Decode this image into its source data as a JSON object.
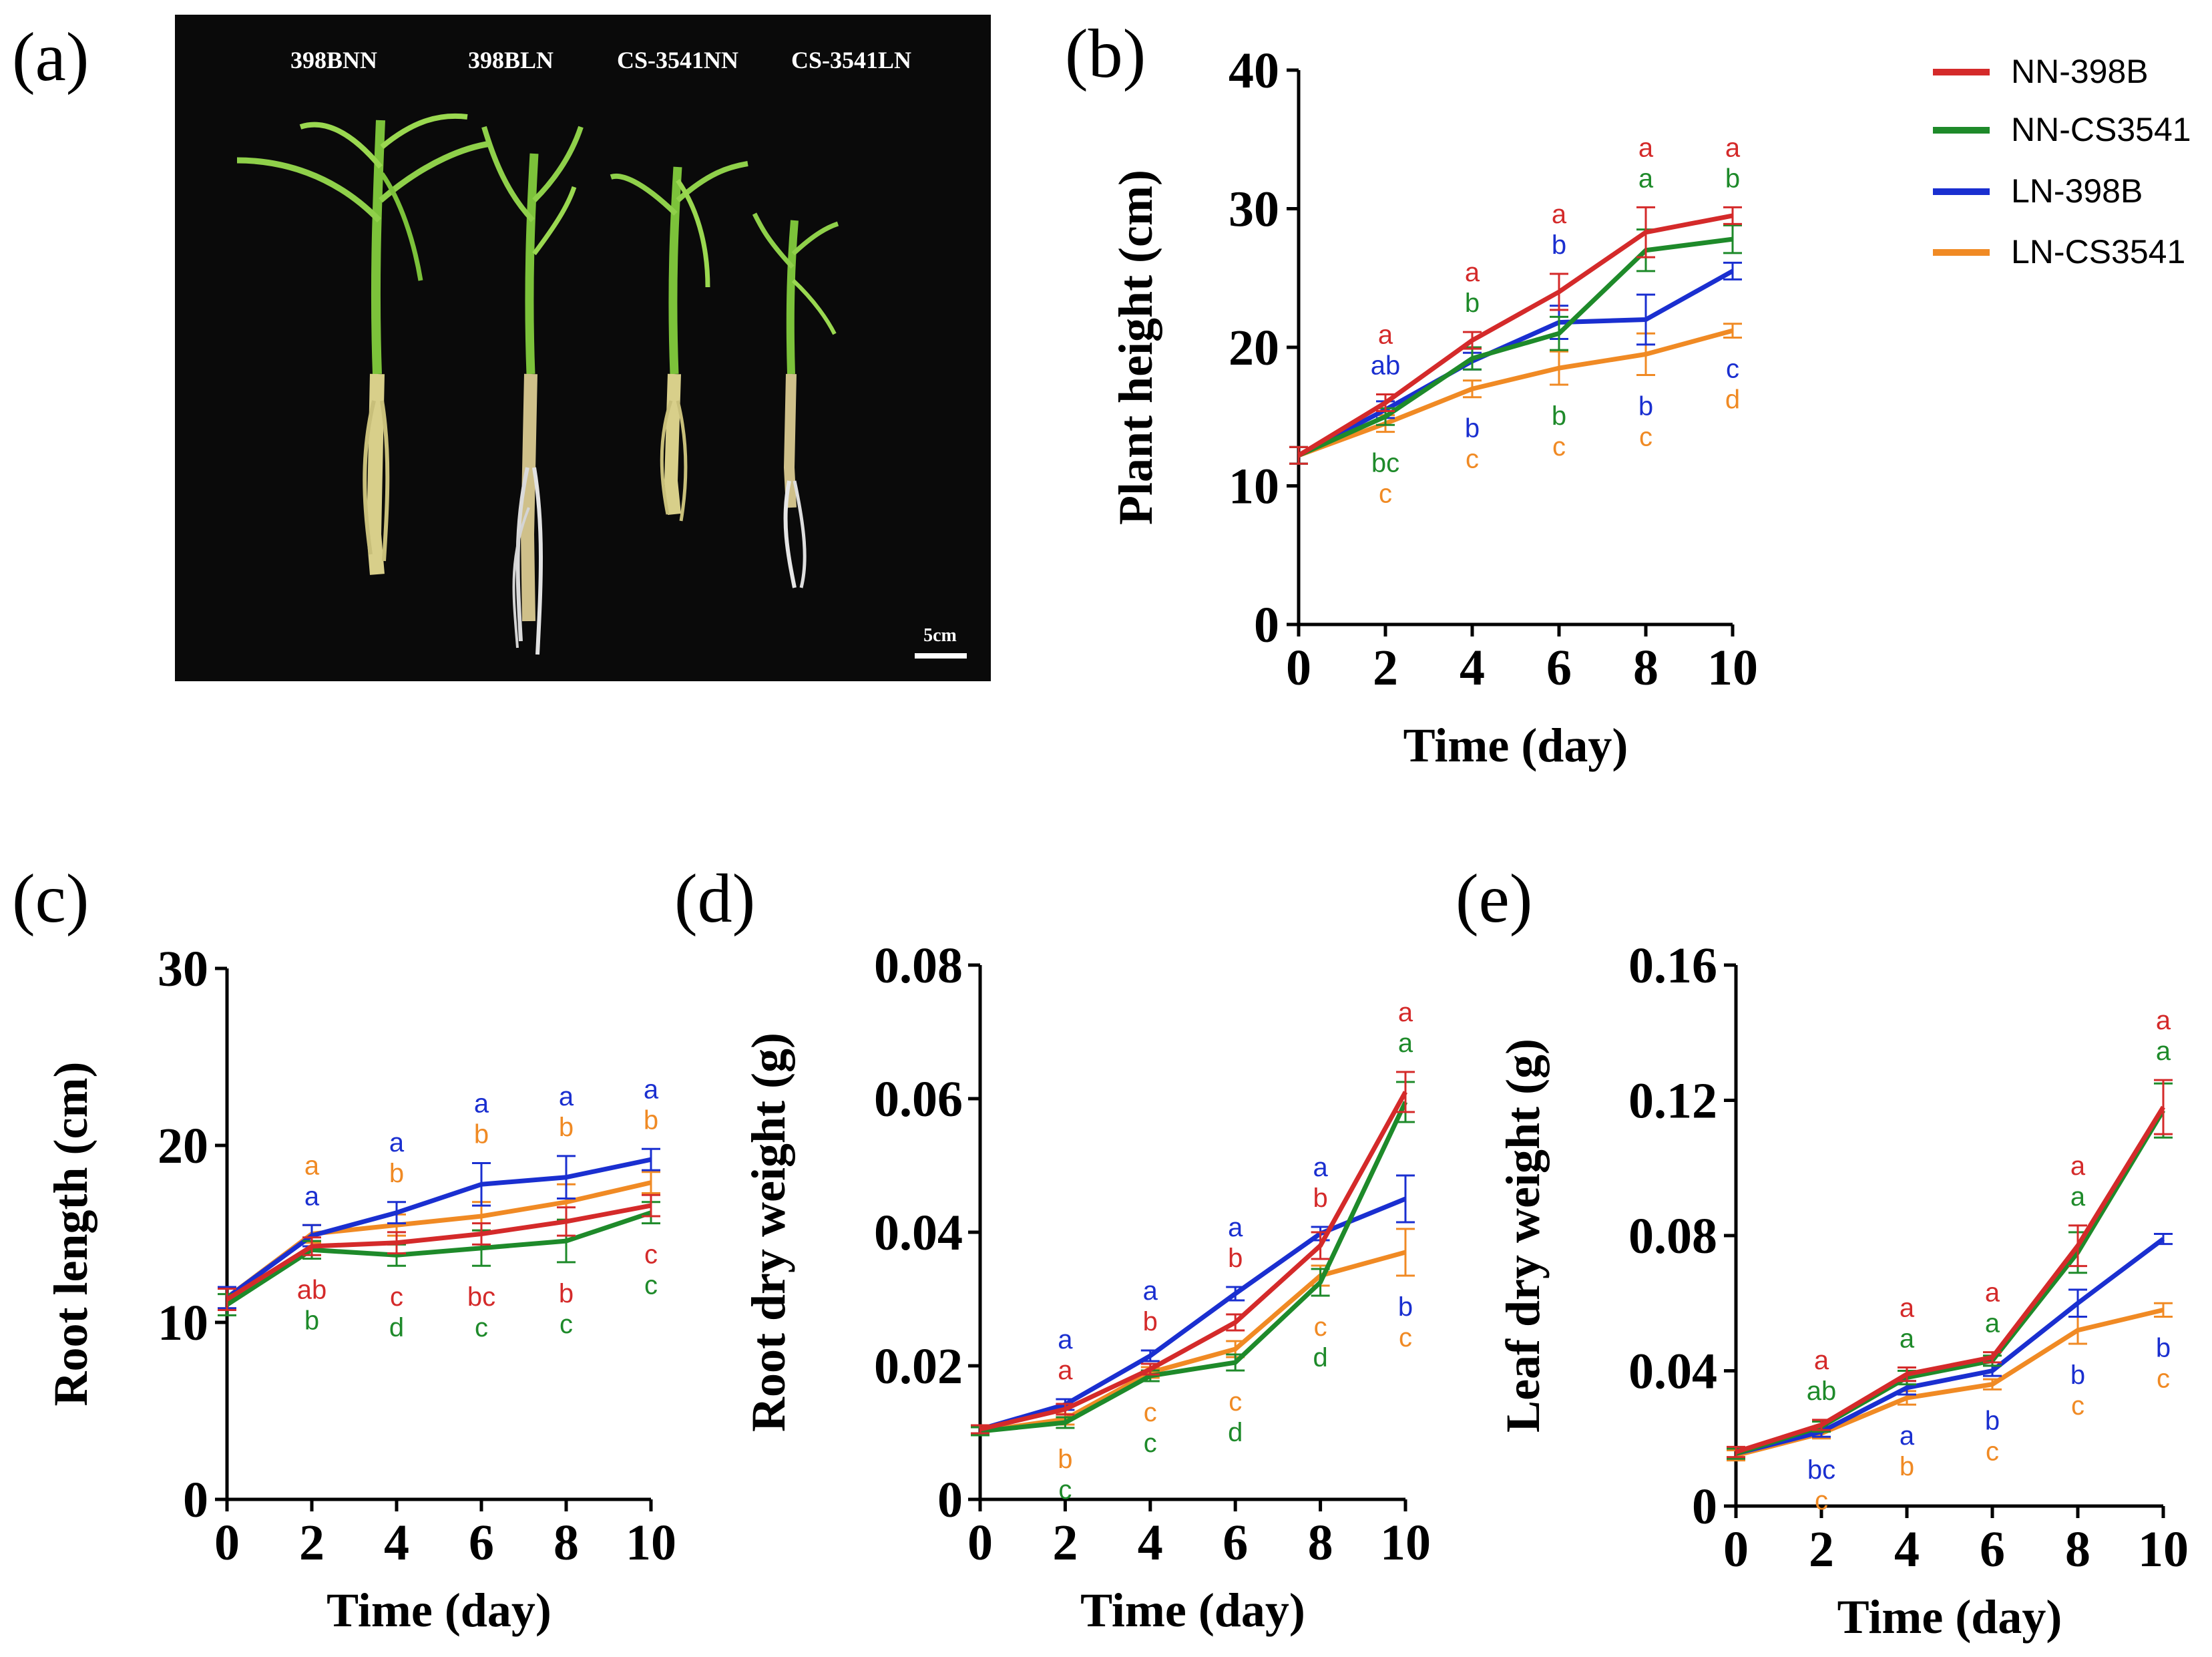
{
  "colors": {
    "NN-398B": "#d42a2a",
    "NN-CS3541": "#1e8a2a",
    "LN-398B": "#1a2fd0",
    "LN-CS3541": "#f08a24"
  },
  "legend": [
    "NN-398B",
    "NN-CS3541",
    "LN-398B",
    "LN-CS3541"
  ],
  "photo": {
    "label": "(a)",
    "samples": [
      "398BNN",
      "398BLN",
      "CS-3541NN",
      "CS-3541LN"
    ],
    "scale_bar": "5cm"
  },
  "chart_data": [
    {
      "id": "b",
      "label": "(b)",
      "type": "line",
      "xlabel": "Time (day)",
      "ylabel": "Plant height (cm)",
      "x": [
        0,
        2,
        4,
        6,
        8,
        10
      ],
      "xticks": [
        "0",
        "2",
        "4",
        "6",
        "8",
        "10"
      ],
      "ylim": [
        0,
        40
      ],
      "yticks": [
        0,
        10,
        20,
        30,
        40
      ],
      "ytick_labels": [
        "0",
        "10",
        "20",
        "30",
        "40"
      ],
      "series": [
        {
          "name": "NN-398B",
          "values": [
            12.2,
            16.0,
            20.5,
            24.0,
            28.3,
            29.5
          ],
          "errors": [
            0.6,
            0.6,
            0.6,
            1.3,
            1.8,
            0.6
          ],
          "sig": [
            "",
            "a",
            "a",
            "a",
            "a",
            "a"
          ]
        },
        {
          "name": "NN-CS3541",
          "values": [
            12.2,
            15.0,
            19.2,
            21.0,
            27.0,
            27.8
          ],
          "errors": [
            0.6,
            0.6,
            0.8,
            1.2,
            1.5,
            1.0
          ],
          "sig": [
            "",
            "bc",
            "b",
            "b",
            "a",
            "b"
          ]
        },
        {
          "name": "LN-398B",
          "values": [
            12.2,
            15.5,
            19.0,
            21.8,
            22.0,
            25.5
          ],
          "errors": [
            0.6,
            0.6,
            0.6,
            1.2,
            1.8,
            0.6
          ],
          "sig": [
            "",
            "ab",
            "b",
            "b",
            "b",
            "c"
          ]
        },
        {
          "name": "LN-CS3541",
          "values": [
            12.2,
            14.5,
            17.0,
            18.5,
            19.5,
            21.2
          ],
          "errors": [
            0.6,
            0.6,
            0.6,
            1.2,
            1.5,
            0.5
          ],
          "sig": [
            "",
            "c",
            "c",
            "c",
            "c",
            "d"
          ]
        }
      ]
    },
    {
      "id": "c",
      "label": "(c)",
      "type": "line",
      "xlabel": "Time (day)",
      "ylabel": "Root length (cm)",
      "x": [
        0,
        2,
        4,
        6,
        8,
        10
      ],
      "xticks": [
        "0",
        "2",
        "4",
        "6",
        "8",
        "10"
      ],
      "ylim": [
        0,
        30
      ],
      "yticks": [
        0,
        10,
        20,
        30
      ],
      "ytick_labels": [
        "0",
        "10",
        "20",
        "30"
      ],
      "series": [
        {
          "name": "NN-398B",
          "values": [
            11.3,
            14.3,
            14.5,
            15.0,
            15.7,
            16.6
          ],
          "errors": [
            0.6,
            0.5,
            0.6,
            0.6,
            0.8,
            0.6
          ],
          "sig": [
            "",
            "ab",
            "c",
            "bc",
            "b",
            "c"
          ]
        },
        {
          "name": "NN-CS3541",
          "values": [
            11.0,
            14.1,
            13.8,
            14.2,
            14.6,
            16.2
          ],
          "errors": [
            0.6,
            0.5,
            0.6,
            1.0,
            1.2,
            0.6
          ],
          "sig": [
            "",
            "b",
            "d",
            "c",
            "c",
            "c"
          ]
        },
        {
          "name": "LN-398B",
          "values": [
            11.4,
            14.9,
            16.2,
            17.8,
            18.2,
            19.2
          ],
          "errors": [
            0.6,
            0.6,
            0.6,
            1.2,
            1.2,
            0.6
          ],
          "sig": [
            "",
            "a",
            "a",
            "a",
            "a",
            "a"
          ]
        },
        {
          "name": "LN-CS3541",
          "values": [
            11.4,
            15.0,
            15.5,
            16.0,
            16.8,
            17.9
          ],
          "errors": [
            0.6,
            0.5,
            0.6,
            0.8,
            1.0,
            0.6
          ],
          "sig": [
            "",
            "a",
            "b",
            "b",
            "b",
            "b"
          ]
        }
      ]
    },
    {
      "id": "d",
      "label": "(d)",
      "type": "line",
      "xlabel": "Time (day)",
      "ylabel": "Root dry weight (g)",
      "x": [
        0,
        2,
        4,
        6,
        8,
        10
      ],
      "xticks": [
        "0",
        "2",
        "4",
        "6",
        "8",
        "10"
      ],
      "ylim": [
        0,
        0.08
      ],
      "yticks": [
        0,
        0.02,
        0.04,
        0.06,
        0.08
      ],
      "ytick_labels": [
        "0",
        "0.02",
        "0.04",
        "0.06",
        "0.08"
      ],
      "series": [
        {
          "name": "NN-398B",
          "values": [
            0.0105,
            0.0135,
            0.0195,
            0.0265,
            0.038,
            0.061
          ],
          "errors": [
            0.0006,
            0.0008,
            0.0008,
            0.0012,
            0.002,
            0.003
          ],
          "sig": [
            "",
            "a",
            "b",
            "b",
            "b",
            "a"
          ]
        },
        {
          "name": "NN-CS3541",
          "values": [
            0.0102,
            0.0115,
            0.0185,
            0.0205,
            0.0325,
            0.0595
          ],
          "errors": [
            0.0006,
            0.0008,
            0.0008,
            0.0012,
            0.002,
            0.003
          ],
          "sig": [
            "",
            "c",
            "c",
            "d",
            "d",
            "a"
          ]
        },
        {
          "name": "LN-398B",
          "values": [
            0.0105,
            0.0142,
            0.0215,
            0.0308,
            0.0398,
            0.045
          ],
          "errors": [
            0.0006,
            0.0008,
            0.0008,
            0.001,
            0.001,
            0.0035
          ],
          "sig": [
            "",
            "a",
            "a",
            "a",
            "a",
            "b"
          ]
        },
        {
          "name": "LN-CS3541",
          "values": [
            0.0102,
            0.012,
            0.019,
            0.0225,
            0.0335,
            0.037
          ],
          "errors": [
            0.0006,
            0.0008,
            0.0008,
            0.0012,
            0.0015,
            0.0035
          ],
          "sig": [
            "",
            "b",
            "c",
            "c",
            "c",
            "c"
          ]
        }
      ]
    },
    {
      "id": "e",
      "label": "(e)",
      "type": "line",
      "xlabel": "Time (day)",
      "ylabel": "Leaf dry weight (g)",
      "x": [
        0,
        2,
        4,
        6,
        8,
        10
      ],
      "xticks": [
        "0",
        "2",
        "4",
        "6",
        "8",
        "10"
      ],
      "ylim": [
        0,
        0.16
      ],
      "yticks": [
        0,
        0.04,
        0.08,
        0.12,
        0.16
      ],
      "ytick_labels": [
        "0",
        "0.04",
        "0.08",
        "0.12",
        "0.16"
      ],
      "series": [
        {
          "name": "NN-398B",
          "values": [
            0.016,
            0.024,
            0.039,
            0.044,
            0.077,
            0.118
          ],
          "errors": [
            0.0015,
            0.0015,
            0.002,
            0.0015,
            0.006,
            0.008
          ],
          "sig": [
            "",
            "a",
            "a",
            "a",
            "a",
            "a"
          ]
        },
        {
          "name": "NN-CS3541",
          "values": [
            0.0155,
            0.0235,
            0.038,
            0.043,
            0.075,
            0.117
          ],
          "errors": [
            0.0015,
            0.0015,
            0.002,
            0.0015,
            0.006,
            0.008
          ],
          "sig": [
            "",
            "ab",
            "a",
            "a",
            "a",
            "a"
          ]
        },
        {
          "name": "LN-398B",
          "values": [
            0.0155,
            0.022,
            0.035,
            0.04,
            0.06,
            0.079
          ],
          "errors": [
            0.0015,
            0.0015,
            0.002,
            0.0015,
            0.004,
            0.0015
          ],
          "sig": [
            "",
            "bc",
            "a",
            "b",
            "b",
            "b"
          ]
        },
        {
          "name": "LN-CS3541",
          "values": [
            0.015,
            0.0215,
            0.032,
            0.036,
            0.052,
            0.058
          ],
          "errors": [
            0.0015,
            0.0015,
            0.002,
            0.0015,
            0.004,
            0.002
          ],
          "sig": [
            "",
            "c",
            "b",
            "c",
            "c",
            "c"
          ]
        }
      ]
    }
  ]
}
